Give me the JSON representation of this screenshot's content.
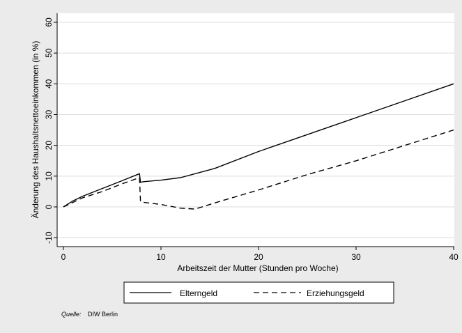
{
  "chart_data": {
    "type": "line",
    "xlabel": "Arbeitszeit der Mutter (Stunden pro Woche)",
    "ylabel": "Änderung des Haushaltsnettoeinkommen (in %)",
    "xlim": [
      0,
      40
    ],
    "ylim": [
      -10,
      60
    ],
    "xticks": [
      0,
      10,
      20,
      30,
      40
    ],
    "yticks": [
      -10,
      0,
      10,
      20,
      30,
      40,
      50,
      60
    ],
    "grid": "horizontal",
    "legend_position": "bottom",
    "series": [
      {
        "name": "Elterngeld",
        "style": "solid",
        "color": "#000000",
        "x": [
          0,
          1,
          2,
          4,
          6,
          7.8,
          7.9,
          8.2,
          10,
          12,
          15.5,
          20,
          25,
          30,
          35,
          40
        ],
        "y": [
          0,
          2,
          3.5,
          6,
          8.5,
          10.8,
          8,
          8.2,
          8.7,
          9.5,
          12.5,
          18,
          23.5,
          29,
          34.5,
          40
        ]
      },
      {
        "name": "Erziehungsgeld",
        "style": "dashed",
        "color": "#000000",
        "x": [
          0,
          1,
          2,
          4,
          6,
          7.8,
          7.9,
          8.2,
          10,
          12,
          13.5,
          15.5,
          20,
          25,
          30,
          35,
          40
        ],
        "y": [
          0,
          1.5,
          3,
          5,
          7.5,
          9.5,
          1.8,
          1.5,
          0.8,
          -0.4,
          -0.7,
          1.3,
          5.5,
          10.5,
          15,
          20,
          25
        ]
      }
    ],
    "source_label": "Quelle:",
    "source_value": "DIW Berlin"
  }
}
